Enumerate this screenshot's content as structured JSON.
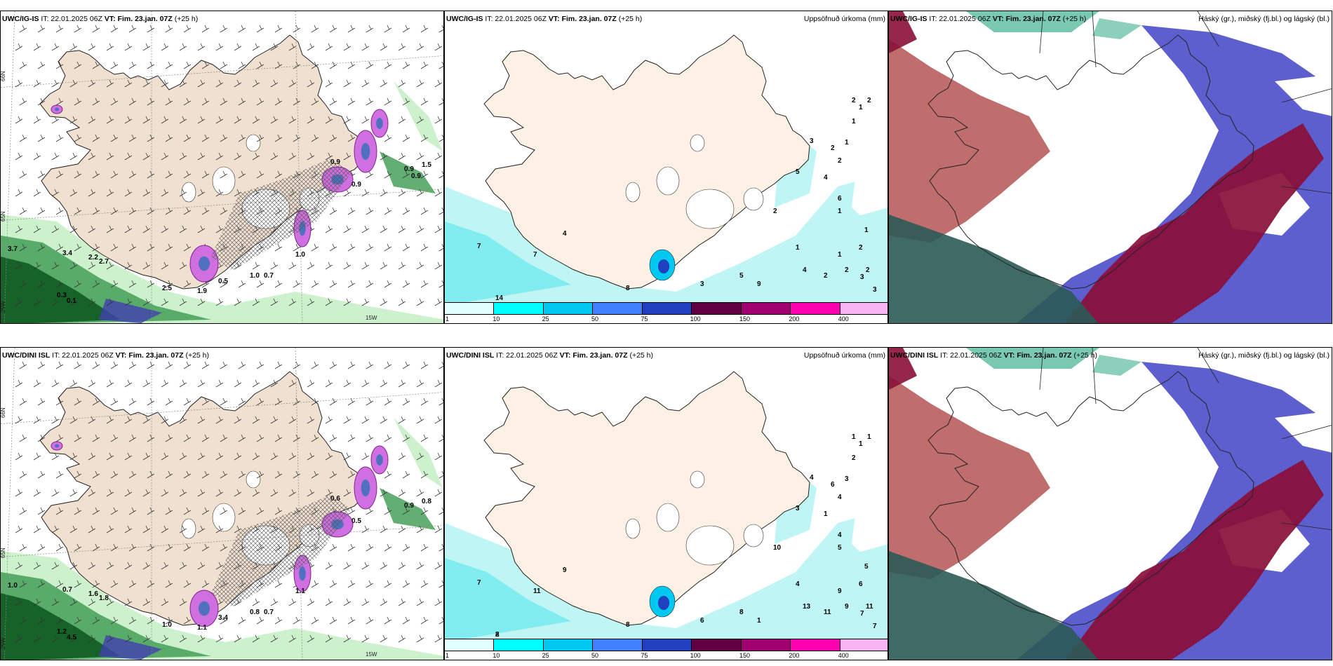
{
  "panels": [
    {
      "id": "p1",
      "model": "UWC/IG-IS",
      "it": "IT: 22.01.2025 06Z",
      "vt": "VT: Fim. 23.jan. 07Z",
      "lead": "(+25 h)",
      "title": "",
      "type": "wind"
    },
    {
      "id": "p2",
      "model": "UWC/IG-IS",
      "it": "IT: 22.01.2025 06Z",
      "vt": "VT: Fim. 23.jan. 07Z",
      "lead": "(+25 h)",
      "title": "Uppsöfnuð úrkoma (mm)",
      "type": "precip"
    },
    {
      "id": "p3",
      "model": "UWC/IG-IS",
      "it": "IT: 22.01.2025 06Z",
      "vt": "VT: Fim. 23.jan. 07Z",
      "lead": "(+25 h)",
      "title": "Háský (gr.), miðský (fj.bl.) og lágský (bl.)",
      "type": "cloud"
    },
    {
      "id": "p4",
      "model": "UWC/DINI ISL",
      "it": "IT: 22.01.2025 06Z",
      "vt": "VT: Fim. 23.jan. 07Z",
      "lead": "(+25 h)",
      "title": "",
      "type": "wind"
    },
    {
      "id": "p5",
      "model": "UWC/DINI ISL",
      "it": "IT: 22.01.2025 06Z",
      "vt": "VT: Fim. 23.jan. 07Z",
      "lead": "(+25 h)",
      "title": "Uppsöfnuð úrkoma (mm)",
      "type": "precip"
    },
    {
      "id": "p6",
      "model": "UWC/DINI ISL",
      "it": "IT: 22.01.2025 06Z",
      "vt": "VT: Fim. 23.jan. 07Z",
      "lead": "(+25 h)",
      "title": "Háský (gr.), miðský (fj.bl.) og lágský (bl.)",
      "type": "cloud"
    }
  ],
  "legend": {
    "ticks": [
      "1",
      "10",
      "25",
      "50",
      "75",
      "100",
      "150",
      "200",
      "400"
    ],
    "colors": [
      "#e0ffff",
      "#00ffff",
      "#00c8f0",
      "#4080ff",
      "#2040c0",
      "#600040",
      "#a00070",
      "#ff00b0",
      "#f7b4f0"
    ]
  },
  "coords": {
    "n66": "66N",
    "n65": "65N",
    "w25": "25W",
    "w20": "20W",
    "w15": "15W"
  },
  "wind_labels_top": [
    "3.7",
    "3.4",
    "2.7",
    "2.2",
    "0.3",
    "0.1",
    "1.9",
    "2.5",
    "0.5",
    "1.0",
    "0.7",
    "1.0",
    "0.9",
    "0.9",
    "0.9",
    "1.5",
    "0.9"
  ],
  "wind_labels_bottom": [
    "1.0",
    "0.7",
    "1.8",
    "1.6",
    "1.2",
    "4.5",
    "1.1",
    "1.0",
    "3.4",
    "1.1",
    "0.7",
    "0.8",
    "0.6",
    "0.5",
    "0.9",
    "0.8"
  ],
  "precip_labels_top": [
    "14",
    "7",
    "7",
    "4",
    "8",
    "3",
    "9",
    "5",
    "4",
    "2",
    "2",
    "2",
    "3",
    "3",
    "1",
    "2",
    "1",
    "1",
    "2",
    "1",
    "6",
    "4",
    "3",
    "5",
    "2",
    "2",
    "1",
    "1",
    "1",
    "2",
    "2"
  ],
  "precip_labels_bottom": [
    "8",
    "7",
    "11",
    "9",
    "8",
    "6",
    "1",
    "8",
    "13",
    "11",
    "9",
    "11",
    "7",
    "7",
    "4",
    "10",
    "9",
    "5",
    "6",
    "5",
    "4",
    "1",
    "4",
    "3",
    "6",
    "4",
    "3",
    "2",
    "1",
    "1",
    "1",
    "2"
  ]
}
